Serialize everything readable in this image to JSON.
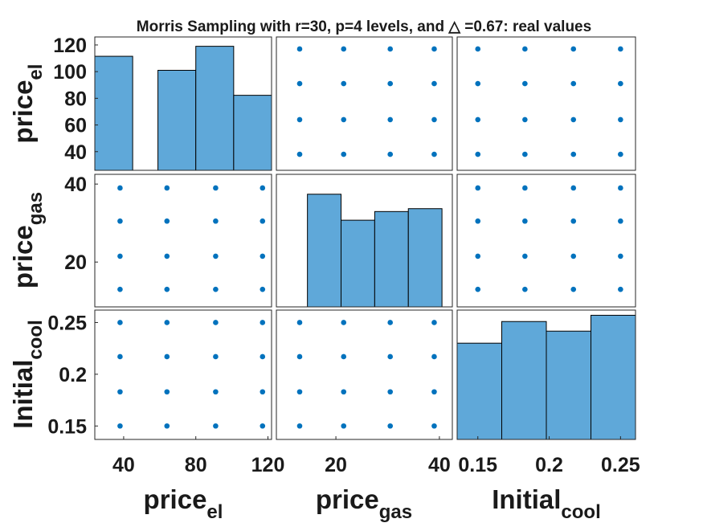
{
  "chart_data": {
    "type": "scatter-matrix",
    "title": "Morris Sampling with r=30, p=4 levels, and △ =0.67: real values",
    "variables": [
      {
        "name": "price",
        "subscript": "el",
        "levels": [
          38,
          64,
          91,
          117
        ],
        "ticks": [
          40,
          80,
          120
        ],
        "diag_ticks": [
          40,
          60,
          80,
          100,
          120
        ],
        "hist_counts": [
          114,
          0,
          100,
          124,
          75
        ],
        "hist_edges": [
          24,
          45,
          59,
          80,
          101,
          122
        ]
      },
      {
        "name": "price",
        "subscript": "gas",
        "levels": [
          13,
          21.5,
          30.5,
          39
        ],
        "ticks": [
          20,
          40
        ],
        "hist_counts": [
          39,
          30,
          33,
          34
        ],
        "hist_edges": [
          14.5,
          21,
          27.5,
          34,
          40.5
        ]
      },
      {
        "name": "Initial",
        "subscript": "cool",
        "levels": [
          0.15,
          0.183,
          0.217,
          0.25
        ],
        "ticks": [
          0.15,
          0.2,
          0.25
        ],
        "tick_labels": [
          "0.15",
          "0.2",
          "0.25"
        ],
        "hist_counts": [
          200,
          245,
          225,
          258
        ],
        "hist_edges": [
          0.1355,
          0.1745,
          0.2135,
          0.2525,
          0.2915
        ]
      }
    ],
    "diag_hist_count_range": [
      0,
      260
    ]
  }
}
